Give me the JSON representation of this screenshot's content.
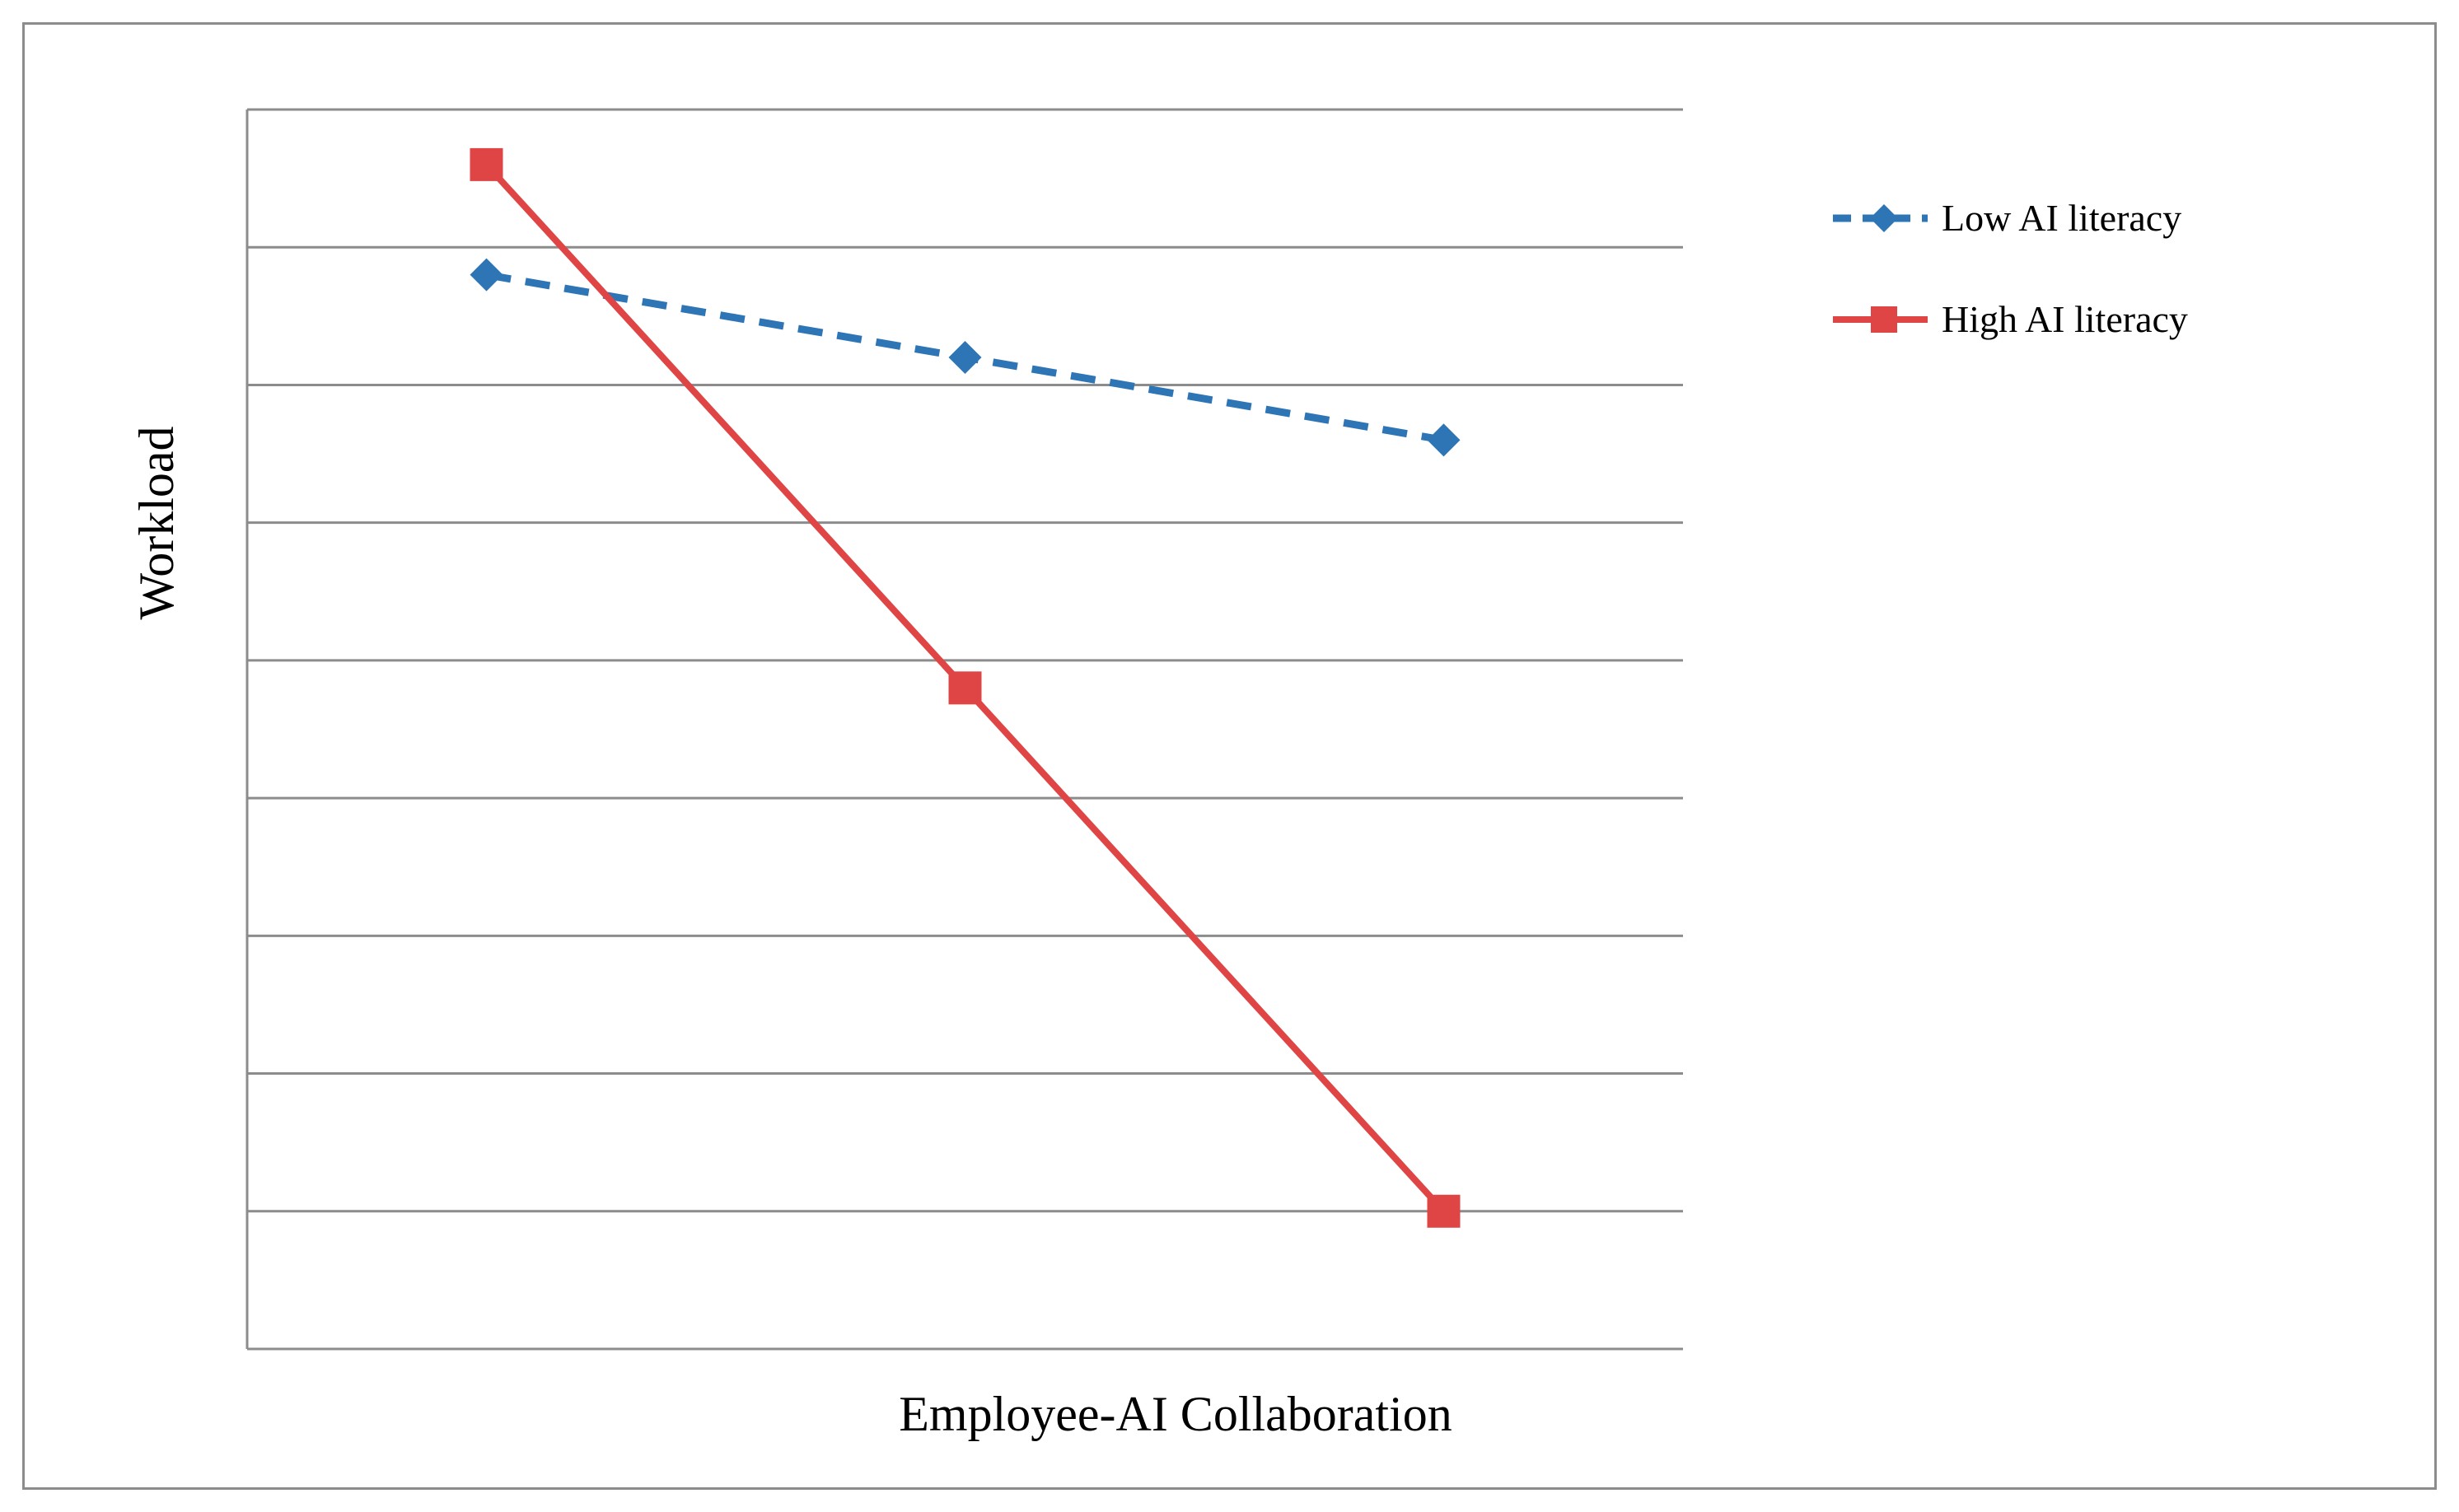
{
  "chart_data": {
    "type": "line",
    "title": "",
    "xlabel": "Employee-AI Collaboration",
    "ylabel": "Workload",
    "x": [
      1,
      2,
      3
    ],
    "xlim": [
      0.5,
      3.5
    ],
    "ylim": [
      0,
      9
    ],
    "y_gridlines": [
      1,
      2,
      3,
      4,
      5,
      6,
      7,
      8,
      9
    ],
    "grid": true,
    "legend_position": "right",
    "series": [
      {
        "name": "Low AI literacy",
        "values": [
          7.8,
          7.2,
          6.6
        ],
        "color": "#2E75B6",
        "line_style": "dashed",
        "marker": "diamond"
      },
      {
        "name": "High AI literacy",
        "values": [
          8.6,
          4.8,
          1.0
        ],
        "color": "#E04545",
        "line_style": "solid",
        "marker": "square"
      }
    ]
  },
  "colors": {
    "gridline": "#8c8c8c",
    "axis": "#8c8c8c",
    "frame": "#8c8c8c",
    "text": "#000000"
  }
}
